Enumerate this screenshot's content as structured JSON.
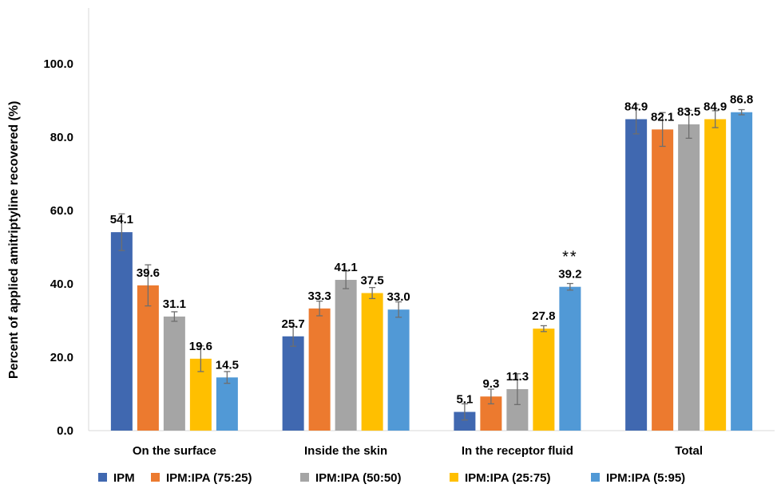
{
  "chart_data": {
    "type": "bar",
    "title": "",
    "xlabel": "",
    "ylabel": "Percent of applied amitriptyline recovered (%)",
    "ylim": [
      0,
      100
    ],
    "yticks": [
      "0.0",
      "20.0",
      "40.0",
      "60.0",
      "80.0",
      "100.0"
    ],
    "grid": false,
    "legend_position": "bottom",
    "categories": [
      "On the surface",
      "Inside the skin",
      "In the receptor fluid",
      "Total"
    ],
    "series": [
      {
        "name": "IPM",
        "color": "#4068B0",
        "values": [
          54.1,
          25.7,
          5.1,
          84.9
        ],
        "errors": [
          5.0,
          2.7,
          2.2,
          4.0
        ],
        "labels": [
          "54.1",
          "25.7",
          "5.1",
          "84.9"
        ]
      },
      {
        "name": "IPM:IPA (75:25)",
        "color": "#EC7A2F",
        "values": [
          39.6,
          33.3,
          9.3,
          82.1
        ],
        "errors": [
          5.6,
          2.0,
          2.0,
          4.6
        ],
        "labels": [
          "39.6",
          "33.3",
          "9.3",
          "82.1"
        ]
      },
      {
        "name": "IPM:IPA (50:50)",
        "color": "#A5A5A5",
        "values": [
          31.1,
          41.1,
          11.3,
          83.5
        ],
        "errors": [
          1.3,
          2.4,
          4.2,
          3.8
        ],
        "labels": [
          "31.1",
          "41.1",
          "11.3",
          "83.5"
        ]
      },
      {
        "name": "IPM:IPA (25:75)",
        "color": "#FFBF00",
        "values": [
          19.6,
          37.5,
          27.8,
          84.9
        ],
        "errors": [
          3.5,
          1.5,
          0.8,
          2.3
        ],
        "labels": [
          "19.6",
          "37.5",
          "27.8",
          "84.9"
        ]
      },
      {
        "name": "IPM:IPA (5:95)",
        "color": "#5199D6",
        "values": [
          14.5,
          33.0,
          39.2,
          86.8
        ],
        "errors": [
          1.6,
          2.1,
          0.9,
          0.7
        ],
        "labels": [
          "14.5",
          "33.0",
          "39.2",
          "86.8"
        ]
      }
    ],
    "annotations": [
      {
        "text": "**",
        "category": "In the receptor fluid",
        "series": "IPM:IPA (5:95)"
      }
    ]
  }
}
